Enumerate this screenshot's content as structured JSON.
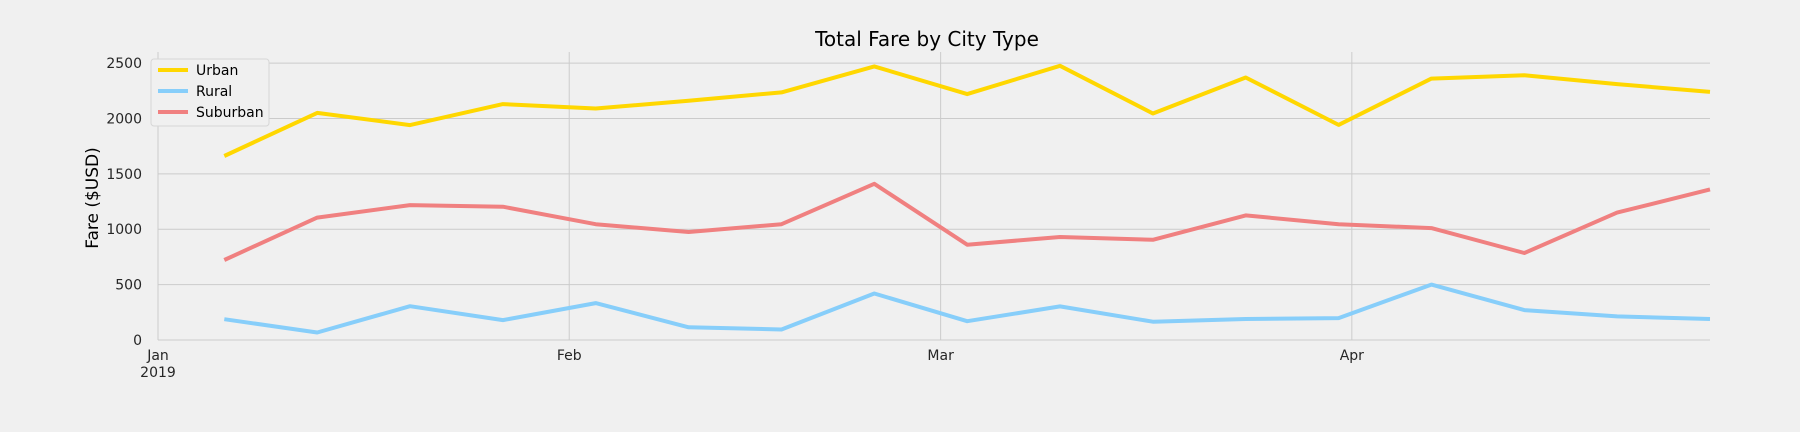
{
  "chart_data": {
    "type": "line",
    "title": "Total Fare by City Type",
    "xlabel": "",
    "ylabel": "Fare ($USD)",
    "x": [
      "2019-01-06",
      "2019-01-13",
      "2019-01-20",
      "2019-01-27",
      "2019-02-03",
      "2019-02-10",
      "2019-02-17",
      "2019-02-24",
      "2019-03-03",
      "2019-03-10",
      "2019-03-17",
      "2019-03-24",
      "2019-03-31",
      "2019-04-07",
      "2019-04-14",
      "2019-04-21",
      "2019-04-28"
    ],
    "xlim": [
      "2019-01-01",
      "2019-04-28"
    ],
    "ylim": [
      0,
      2600
    ],
    "yticks": [
      0,
      500,
      1000,
      1500,
      2000,
      2500
    ],
    "xticks": [
      {
        "date": "2019-01-01",
        "label": "Jan",
        "sublabel": "2019"
      },
      {
        "date": "2019-02-01",
        "label": "Feb",
        "sublabel": ""
      },
      {
        "date": "2019-03-01",
        "label": "Mar",
        "sublabel": ""
      },
      {
        "date": "2019-04-01",
        "label": "Apr",
        "sublabel": ""
      }
    ],
    "grid": true,
    "legend_position": "top-left",
    "series": [
      {
        "name": "Urban",
        "color": "#FFD700",
        "values": [
          1661,
          2050,
          1940,
          2130,
          2090,
          2160,
          2235,
          2470,
          2220,
          2475,
          2045,
          2370,
          1942,
          2360,
          2390,
          2310,
          2240
        ]
      },
      {
        "name": "Rural",
        "color": "#87CEFA",
        "values": [
          188,
          68,
          305,
          180,
          333,
          115,
          95,
          420,
          170,
          303,
          165,
          190,
          198,
          500,
          270,
          213,
          190
        ]
      },
      {
        "name": "Suburban",
        "color": "#F08080",
        "values": [
          722,
          1105,
          1218,
          1203,
          1045,
          975,
          1045,
          1410,
          860,
          930,
          905,
          1125,
          1045,
          1010,
          785,
          1150,
          1360
        ]
      }
    ]
  }
}
